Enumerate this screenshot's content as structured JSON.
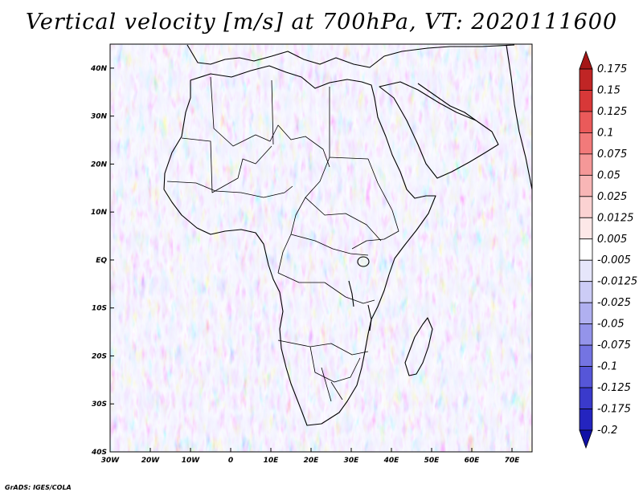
{
  "title": "Vertical velocity [m/s] at 700hPa, VT: 2020111600",
  "footer": "GrADS: IGES/COLA",
  "map": {
    "variable": "Vertical velocity",
    "units": "m/s",
    "level": "700hPa",
    "valid_time": "2020111600",
    "lon_range": [
      -30,
      75
    ],
    "lat_range": [
      -40,
      45
    ],
    "lon_ticks": [
      "30W",
      "20W",
      "10W",
      "0",
      "10E",
      "20E",
      "30E",
      "40E",
      "50E",
      "60E",
      "70E"
    ],
    "lat_ticks": [
      "40N",
      "30N",
      "20N",
      "10N",
      "EQ",
      "10S",
      "20S",
      "30S",
      "40S"
    ],
    "colors": {
      "positive": "#e03c3c",
      "negative": "#4b4be6",
      "neutral": "#ffffff",
      "coast": "#000000"
    }
  },
  "colorbar": {
    "labels": [
      "0.175",
      "0.15",
      "0.125",
      "0.1",
      "0.075",
      "0.05",
      "0.025",
      "0.0125",
      "0.005",
      "-0.005",
      "-0.0125",
      "-0.025",
      "-0.05",
      "-0.075",
      "-0.1",
      "-0.125",
      "-0.175",
      "-0.2"
    ],
    "colors": [
      "#a51616",
      "#c02525",
      "#d83838",
      "#ea5a5a",
      "#f27a7a",
      "#f59898",
      "#f8b6b6",
      "#fbd2d2",
      "#fde8e8",
      "#ffffff",
      "#e6e6fb",
      "#ccccf6",
      "#b0b0f0",
      "#9494ea",
      "#7474e2",
      "#5656d8",
      "#3a3acb",
      "#2424bf",
      "#1111a6"
    ]
  }
}
